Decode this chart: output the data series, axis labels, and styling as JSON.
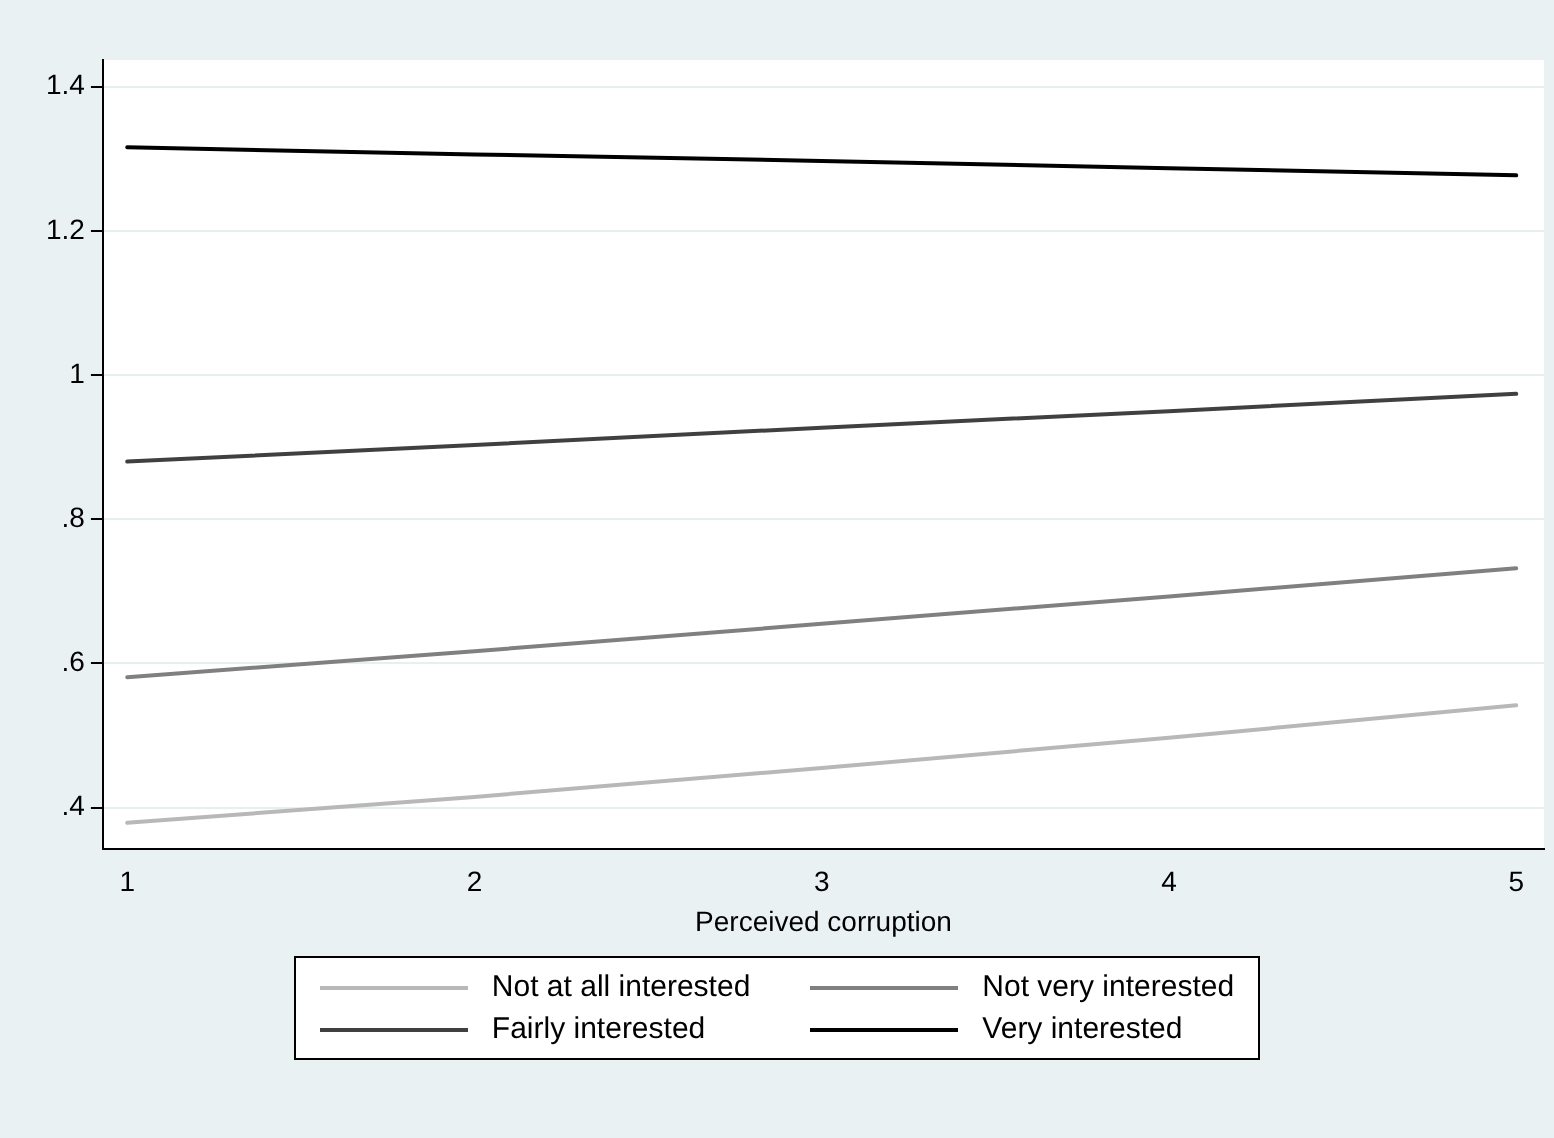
{
  "chart_data": {
    "type": "line",
    "xlabel": "Perceived corruption",
    "x": [
      1,
      2,
      3,
      4,
      5
    ],
    "series": [
      {
        "name": "Not at all interested",
        "color": "#b8b8b8",
        "values": [
          0.379,
          0.415,
          0.455,
          0.497,
          0.542
        ]
      },
      {
        "name": "Not very interested",
        "color": "#808080",
        "values": [
          0.581,
          0.617,
          0.655,
          0.693,
          0.732
        ]
      },
      {
        "name": "Fairly interested",
        "color": "#404040",
        "values": [
          0.88,
          0.903,
          0.927,
          0.95,
          0.974
        ]
      },
      {
        "name": "Very interested",
        "color": "#000000",
        "values": [
          1.316,
          1.306,
          1.297,
          1.287,
          1.277
        ]
      }
    ],
    "xlim": [
      0.93,
      5.08
    ],
    "xticks": [
      1,
      2,
      3,
      4,
      5
    ],
    "ylim": [
      0.343,
      1.437
    ],
    "yticks": [
      {
        "value": 0.4,
        "label": ".4"
      },
      {
        "value": 0.6,
        "label": ".6"
      },
      {
        "value": 0.8,
        "label": ".8"
      },
      {
        "value": 1,
        "label": "1"
      },
      {
        "value": 1.2,
        "label": "1.2"
      },
      {
        "value": 1.4,
        "label": "1.4"
      }
    ],
    "grid": "y",
    "legend": "bottom",
    "marker": "none",
    "line_style": "solid"
  }
}
